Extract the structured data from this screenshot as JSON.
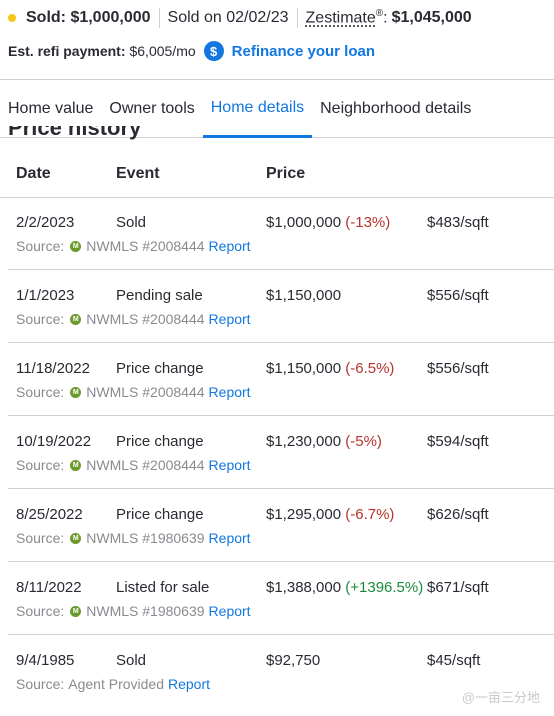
{
  "header": {
    "sold_label": "Sold: $1,000,000",
    "sold_on": "Sold on 02/02/23",
    "zestimate_label": "Zestimate",
    "zestimate_mark": "®",
    "zestimate_sep": ":",
    "zestimate_value": "$1,045,000",
    "refi_label": "Est. refi payment:",
    "refi_value": "$6,005/mo",
    "refi_icon_glyph": "$",
    "refi_link": "Refinance your loan"
  },
  "tabs": [
    {
      "label": "Home value"
    },
    {
      "label": "Owner tools"
    },
    {
      "label": "Home details",
      "active": true
    },
    {
      "label": "Neighborhood details"
    }
  ],
  "section": {
    "title": "Price history"
  },
  "table": {
    "headers": {
      "date": "Date",
      "event": "Event",
      "price": "Price"
    },
    "rows": [
      {
        "date": "2/2/2023",
        "event": "Sold",
        "price": "$1,000,000",
        "change": "(-13%)",
        "change_dir": "neg",
        "sqft": "$483/sqft",
        "source_label": "Source:",
        "source": "NWMLS #2008444",
        "report": "Report",
        "icon": true
      },
      {
        "date": "1/1/2023",
        "event": "Pending sale",
        "price": "$1,150,000",
        "change": "",
        "change_dir": "",
        "sqft": "$556/sqft",
        "source_label": "Source:",
        "source": "NWMLS #2008444",
        "report": "Report",
        "icon": true
      },
      {
        "date": "11/18/2022",
        "event": "Price change",
        "price": "$1,150,000",
        "change": "(-6.5%)",
        "change_dir": "neg",
        "sqft": "$556/sqft",
        "source_label": "Source:",
        "source": "NWMLS #2008444",
        "report": "Report",
        "icon": true
      },
      {
        "date": "10/19/2022",
        "event": "Price change",
        "price": "$1,230,000",
        "change": "(-5%)",
        "change_dir": "neg",
        "sqft": "$594/sqft",
        "source_label": "Source:",
        "source": "NWMLS #2008444",
        "report": "Report",
        "icon": true
      },
      {
        "date": "8/25/2022",
        "event": "Price change",
        "price": "$1,295,000",
        "change": "(-6.7%)",
        "change_dir": "neg",
        "sqft": "$626/sqft",
        "source_label": "Source:",
        "source": "NWMLS #1980639",
        "report": "Report",
        "icon": true
      },
      {
        "date": "8/11/2022",
        "event": "Listed for sale",
        "price": "$1,388,000",
        "change": "(+1396.5%)",
        "change_dir": "pos",
        "sqft": "$671/sqft",
        "source_label": "Source:",
        "source": "NWMLS #1980639",
        "report": "Report",
        "icon": true
      },
      {
        "date": "9/4/1985",
        "event": "Sold",
        "price": "$92,750",
        "change": "",
        "change_dir": "",
        "sqft": "$45/sqft",
        "source_label": "Source:",
        "source": "Agent Provided",
        "report": "Report",
        "icon": false
      }
    ]
  },
  "watermark": "@一亩三分地",
  "colors": {
    "accent": "#1277e1",
    "negative": "#b5342c",
    "positive": "#1a8a3b",
    "sold_dot": "#f5c518"
  }
}
